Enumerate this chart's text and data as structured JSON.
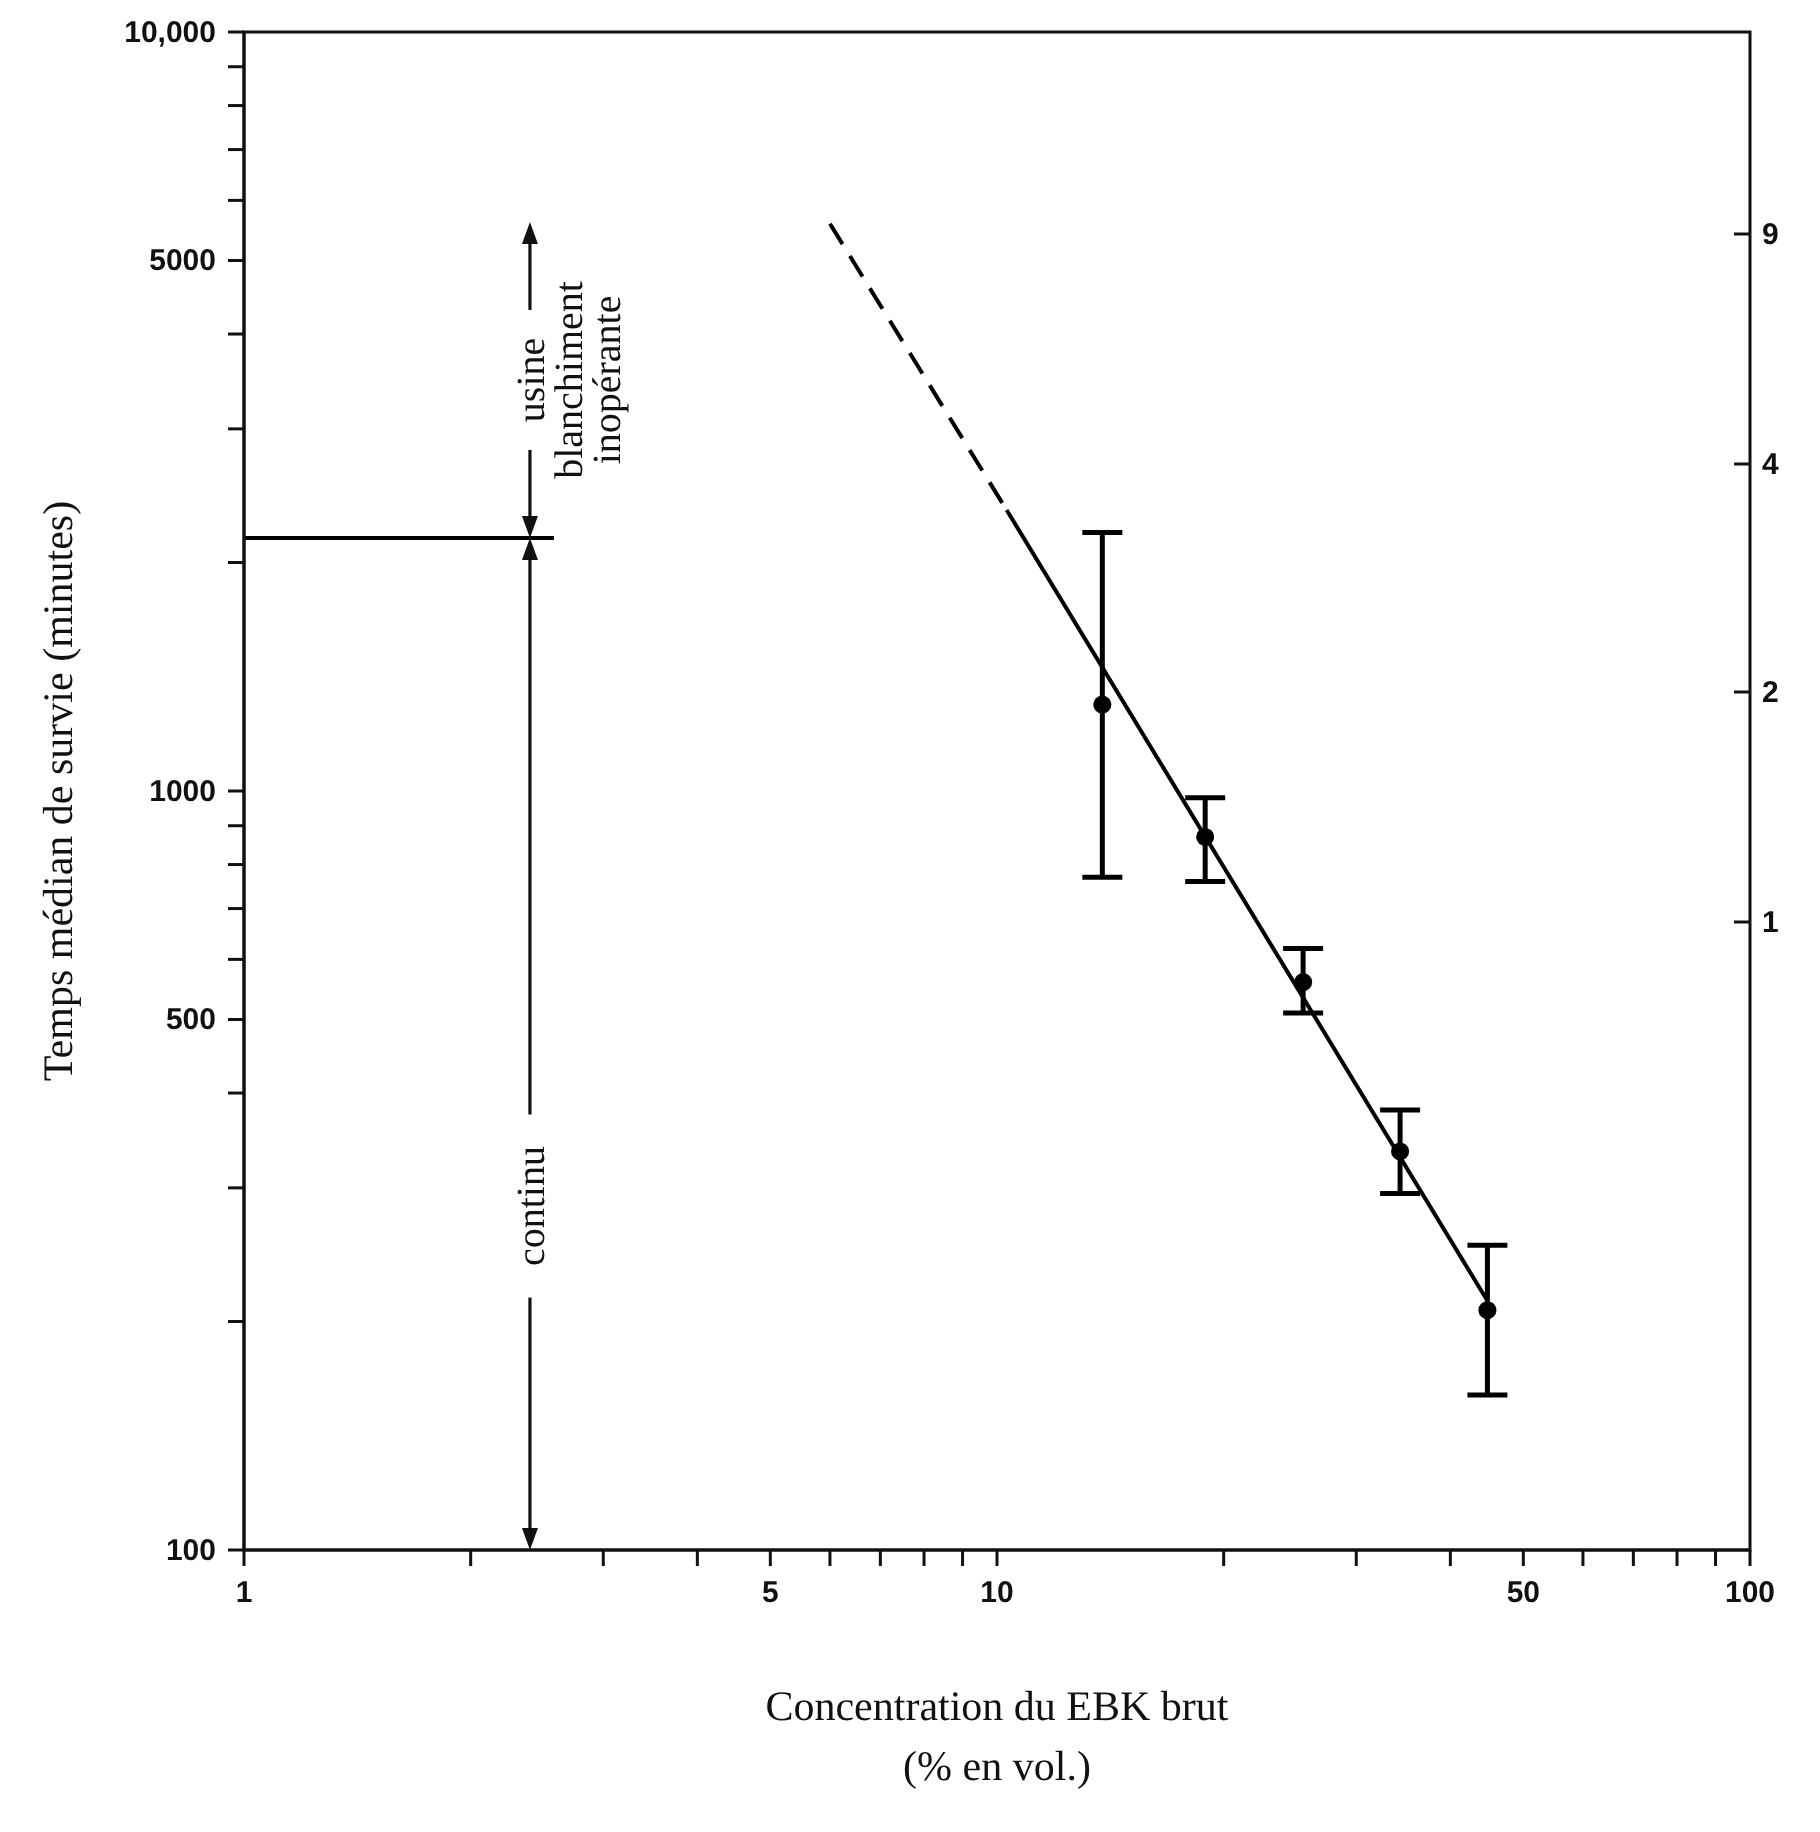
{
  "chart_data": {
    "type": "scatter",
    "xlabel": "Concentration du EBK brut\n(% en vol.)",
    "ylabel": "Temps médian de survie (minutes)",
    "log": "xy",
    "grid": false,
    "marker": "circle",
    "xlim": [
      1,
      100
    ],
    "ylim": [
      100,
      10000
    ],
    "xticks": [
      1,
      {
        "value": 2,
        "label": null
      },
      {
        "value": 3,
        "label": null
      },
      {
        "value": 4,
        "label": null
      },
      5,
      {
        "value": 6,
        "label": null
      },
      {
        "value": 7,
        "label": null
      },
      {
        "value": 8,
        "label": null
      },
      {
        "value": 9,
        "label": null
      },
      10,
      {
        "value": 20,
        "label": null
      },
      {
        "value": 30,
        "label": null
      },
      {
        "value": 40,
        "label": null
      },
      50,
      {
        "value": 60,
        "label": null
      },
      {
        "value": 70,
        "label": null
      },
      {
        "value": 80,
        "label": null
      },
      {
        "value": 90,
        "label": null
      },
      100
    ],
    "yticks": [
      100,
      {
        "value": 200,
        "label": null
      },
      {
        "value": 300,
        "label": null
      },
      {
        "value": 400,
        "label": null
      },
      500,
      {
        "value": 600,
        "label": null
      },
      {
        "value": 700,
        "label": null
      },
      {
        "value": 800,
        "label": null
      },
      {
        "value": 900,
        "label": null
      },
      1000,
      {
        "value": 2000,
        "label": null
      },
      {
        "value": 3000,
        "label": null
      },
      {
        "value": 4000,
        "label": null
      },
      5000,
      {
        "value": 6000,
        "label": null
      },
      {
        "value": 7000,
        "label": null
      },
      {
        "value": 8000,
        "label": null
      },
      {
        "value": 9000,
        "label": null
      },
      {
        "value": 10000,
        "label": "10,000"
      }
    ],
    "series": [
      {
        "color": "#000000",
        "x": [
          13.8,
          18.9,
          25.5,
          34.3,
          44.8
        ],
        "values": [
          1300,
          870,
          560,
          335,
          207
        ],
        "errors": [
          [
            770,
            2190
          ],
          [
            760,
            980
          ],
          [
            510,
            620
          ],
          [
            295,
            380
          ],
          [
            160,
            252
          ]
        ]
      },
      {
        "type": "line",
        "color": "#000000",
        "marker": "none",
        "line_style": "solid",
        "x": [
          10.3,
          44.8
        ],
        "values": [
          2345,
          213
        ]
      },
      {
        "type": "line",
        "color": "#000000",
        "marker": "none",
        "line_style": "dashed",
        "x": [
          6.0,
          10.3
        ],
        "values": [
          5590,
          2345
        ]
      },
      {
        "type": "line",
        "color": "#000000",
        "marker": "none",
        "line_style": "solid",
        "x": [
          1,
          2.58
        ],
        "values": [
          2155,
          2155
        ]
      }
    ],
    "annotations": [
      "usine blanchiment inopérante",
      "continu",
      "9",
      "4",
      "2",
      "1"
    ]
  }
}
